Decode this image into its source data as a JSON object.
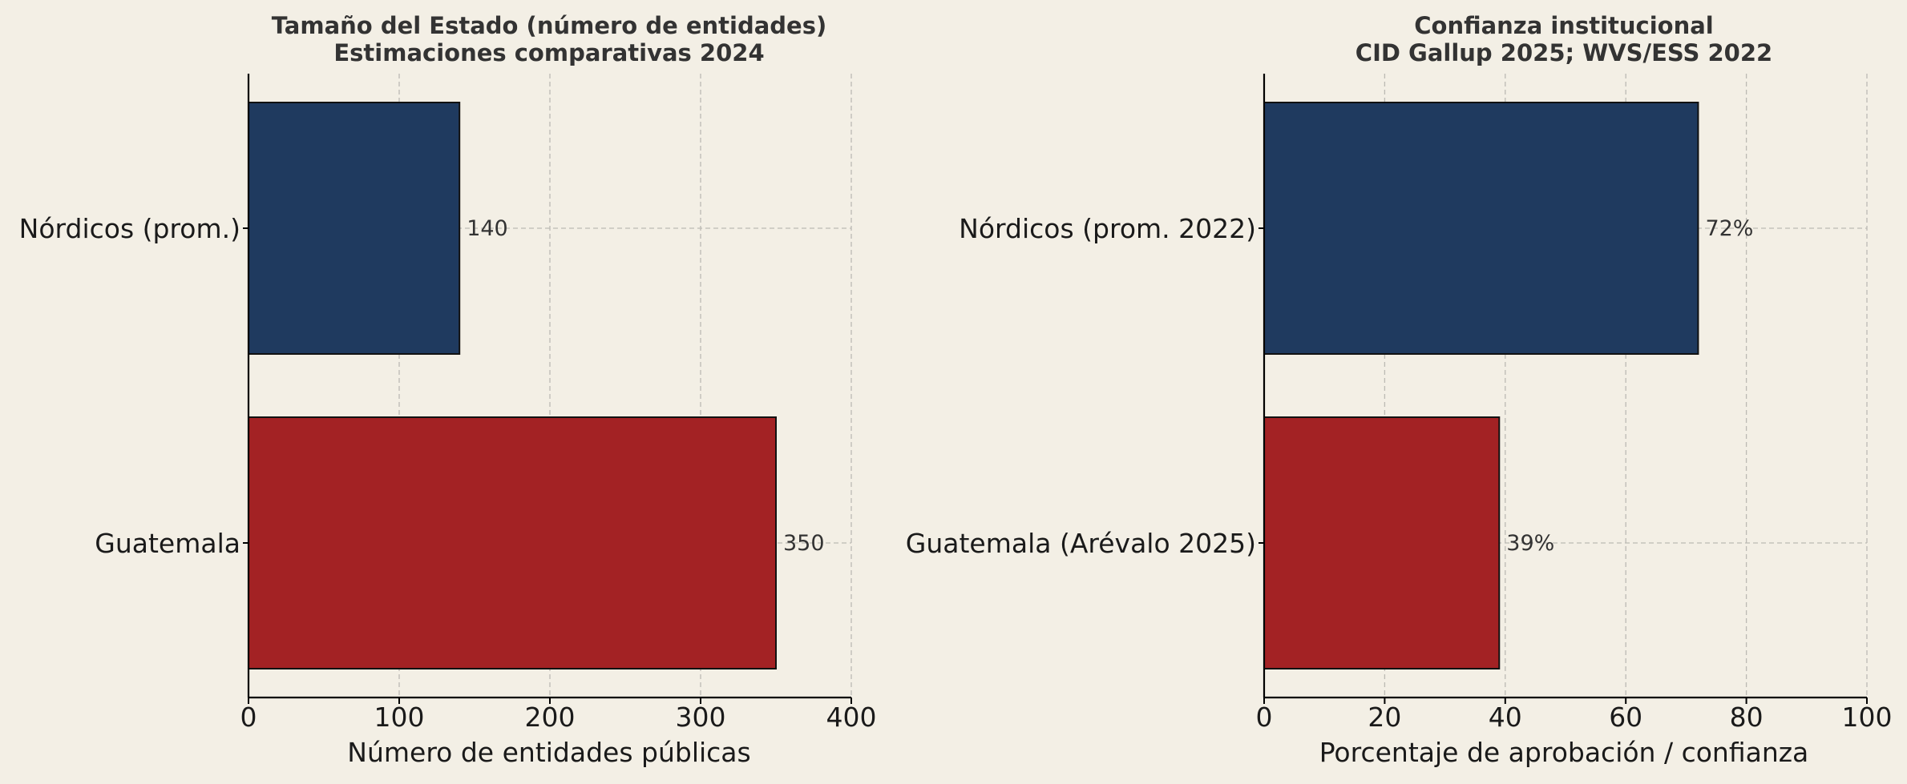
{
  "colors": {
    "background": "#f3efe5",
    "nordic": "#1f3a5f",
    "guatemala": "#a32224",
    "grid": "#bcbab4",
    "axis": "#000000"
  },
  "chart_data": [
    {
      "type": "bar",
      "orientation": "horizontal",
      "title": "Tamaño del Estado (número de entidades)",
      "subtitle": "Estimaciones comparativas 2024",
      "xlabel": "Número de entidades públicas",
      "ylabel": "",
      "xlim": [
        0,
        400
      ],
      "xticks": [
        0,
        100,
        200,
        300,
        400
      ],
      "categories": [
        "Nórdicos (prom.)",
        "Guatemala"
      ],
      "values": [
        140,
        350
      ],
      "value_labels": [
        "140",
        "350"
      ],
      "bar_colors": [
        "#1f3a5f",
        "#a32224"
      ],
      "grid": true
    },
    {
      "type": "bar",
      "orientation": "horizontal",
      "title": "Confianza institucional",
      "subtitle": "CID Gallup 2025; WVS/ESS 2022",
      "xlabel": "Porcentaje de aprobación / confianza",
      "ylabel": "",
      "xlim": [
        0,
        100
      ],
      "xticks": [
        0,
        20,
        40,
        60,
        80,
        100
      ],
      "categories": [
        "Nórdicos (prom. 2022)",
        "Guatemala (Arévalo 2025)"
      ],
      "values": [
        72,
        39
      ],
      "value_labels": [
        "72%",
        "39%"
      ],
      "bar_colors": [
        "#1f3a5f",
        "#a32224"
      ],
      "grid": true
    }
  ]
}
